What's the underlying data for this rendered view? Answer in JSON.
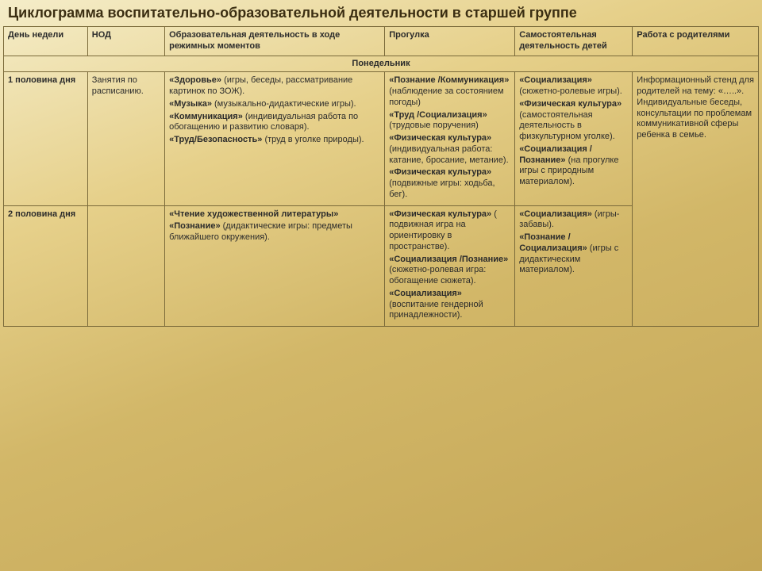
{
  "title": "Циклограмма воспитательно-образовательной деятельности в старшей группе",
  "headers": {
    "day": "День недели",
    "nod": "НОД",
    "obr": "Образовательная деятельность в ходе режимных моментов",
    "prog": "Прогулка",
    "sam": "Самостоятельная деятельность детей",
    "rod": "Работа с родителями"
  },
  "dayOfWeek": "Понедельник",
  "rows": {
    "r1": {
      "label": "1 половина дня",
      "nod": "Занятия по расписанию.",
      "obr": [
        {
          "b": "«Здоровье»",
          "t": " (игры, беседы, рассматривание картинок по ЗОЖ)."
        },
        {
          "b": "«Музыка»",
          "t": " (музыкально-дидактические игры)."
        },
        {
          "b": "«Коммуникация»",
          "t": " (индивидуальная работа по обогащению и развитию словаря)."
        },
        {
          "b": "«Труд/Безопасность»",
          "t": " (труд в уголке природы)."
        }
      ],
      "prog": [
        {
          "b": "«Познание /Коммуникация»",
          "t": " (наблюдение за состоянием погоды)"
        },
        {
          "b": "«Труд /Социализация»",
          "t": " (трудовые поручения)"
        },
        {
          "b": "«Физическая культура»",
          "t": " (индивидуальная работа: катание, бросание, метание)."
        },
        {
          "b": "«Физическая культура»",
          "t": " (подвижные игры: ходьба, бег)."
        }
      ],
      "sam": [
        {
          "b": "«Социализация»",
          "t": " (сюжетно-ролевые игры)."
        },
        {
          "b": "«Физическая культура»",
          "t": " (самостоятельная деятельность в физкультурном уголке)."
        },
        {
          "b": "«Социализация /Познание»",
          "t": " (на прогулке игры с природным материалом)."
        }
      ],
      "rod": "Информационный стенд для родителей на тему: «…..». Индивидуальные беседы, консультации по проблемам коммуникативной сферы ребенка в семье."
    },
    "r2": {
      "label": "2 половина дня",
      "nod": "",
      "obr": [
        {
          "b": "«Чтение художественной литературы»",
          "t": ""
        },
        {
          "b": "«Познание»",
          "t": " (дидактические игры: предметы ближайшего окружения)."
        }
      ],
      "prog": [
        {
          "b": "«Физическая культура»",
          "t": " ( подвижная игра на ориентировку в пространстве)."
        },
        {
          "b": "",
          "t": " "
        },
        {
          "b": "«Социализация /Познание»",
          "t": " (сюжетно-ролевая игра: обогащение сюжета)."
        },
        {
          "b": "«Социализация»",
          "t": " (воспитание гендерной принадлежности)."
        }
      ],
      "sam": [
        {
          "b": "«Социализация»",
          "t": " (игры-забавы)."
        },
        {
          "b": "«Познание /Социализация»",
          "t": " (игры с дидактическим материалом)."
        }
      ]
    }
  },
  "style": {
    "columns": [
      "c-day",
      "c-nod",
      "c-obr",
      "c-prog",
      "c-sam",
      "c-rod"
    ]
  }
}
